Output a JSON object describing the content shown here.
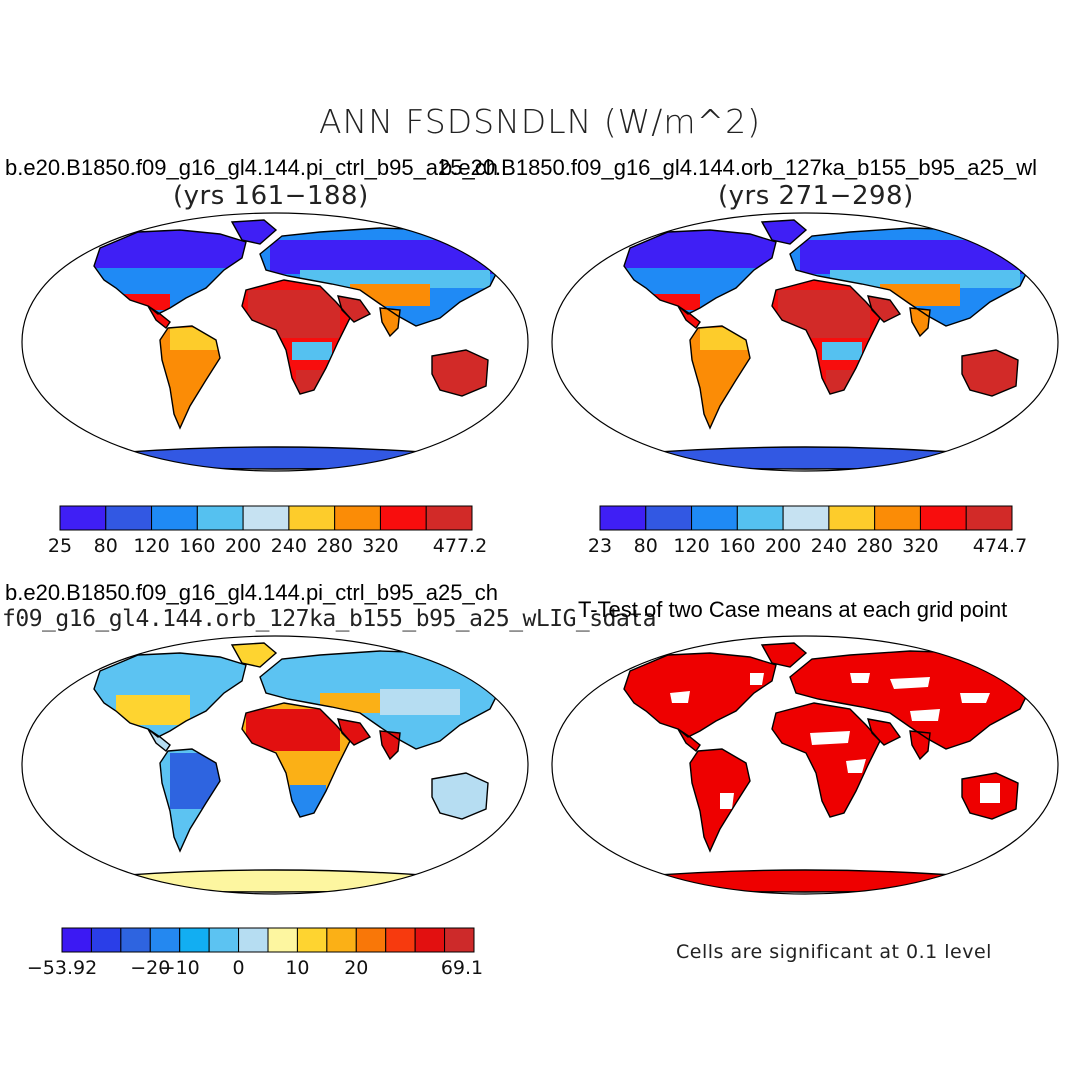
{
  "title": "ANN FSDSNDLN (W/m^2)",
  "panels": {
    "top_left": {
      "case": "b.e20.B1850.f09_g16_gl4.144.pi_ctrl_b95_a25_ch",
      "years": "(yrs 161−188)",
      "colorbar": {
        "colors": [
          "#3f1ff5",
          "#3258e3",
          "#1f8af5",
          "#55c1f0",
          "#c6e2f2",
          "#fdcc2b",
          "#fb8c06",
          "#f80d0d",
          "#d22a28"
        ],
        "ticks": [
          "25",
          "80",
          "120",
          "160",
          "200",
          "240",
          "280",
          "320",
          "477.2"
        ]
      }
    },
    "top_right": {
      "case": "b.e20.B1850.f09_g16_gl4.144.orb_127ka_b155_b95_a25_wl",
      "years": "(yrs 271−298)",
      "colorbar": {
        "colors": [
          "#3f1ff5",
          "#3258e3",
          "#1f8af5",
          "#55c1f0",
          "#c6e2f2",
          "#fdcc2b",
          "#fb8c06",
          "#f80d0d",
          "#d22a28"
        ],
        "ticks": [
          "23",
          "80",
          "120",
          "160",
          "200",
          "240",
          "280",
          "320",
          "474.7"
        ]
      }
    },
    "bottom_left": {
      "case": "b.e20.B1850.f09_g16_gl4.144.pi_ctrl_b95_a25_ch",
      "subtitle": "f09_g16_gl4.144.orb_127ka_b155_b95_a25_wLIG_sdata",
      "colorbar": {
        "colors": [
          "#3c19f3",
          "#2a3ee8",
          "#2e64e0",
          "#2488f0",
          "#12aef2",
          "#5cc3f2",
          "#b6ddf2",
          "#fdf6a0",
          "#fed430",
          "#fbb016",
          "#f97708",
          "#f73a0e",
          "#e21010",
          "#cd2a2a"
        ],
        "ticks": [
          "−53.92",
          "−20",
          "−10",
          "0",
          "10",
          "20",
          "69.1"
        ]
      }
    },
    "bottom_right": {
      "title": "T-Test of two Case means at each grid point",
      "note": "Cells are significant at 0.1 level",
      "sig_color": "#ee0000"
    }
  }
}
